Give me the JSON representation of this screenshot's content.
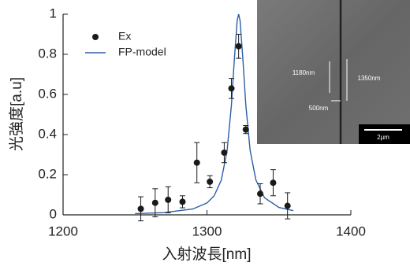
{
  "chart_data": {
    "type": "scatter",
    "x_label": "入射波長[nm]",
    "y_label": "光強度[a.u]",
    "xlim": [
      1200,
      1400
    ],
    "xticks": [
      1200,
      1300,
      1400
    ],
    "ylim": [
      0,
      1
    ],
    "yticks": [
      0,
      0.2,
      0.4,
      0.6,
      0.8,
      1
    ],
    "legend": "upper left",
    "series": [
      {
        "name": "Ex",
        "type": "scatter",
        "color": "#1a1a1a",
        "x": [
          1254,
          1264,
          1273,
          1283,
          1293,
          1302,
          1312,
          1317,
          1322,
          1327,
          1337,
          1346,
          1356
        ],
        "values": [
          0.03,
          0.06,
          0.075,
          0.065,
          0.26,
          0.165,
          0.31,
          0.63,
          0.84,
          0.425,
          0.105,
          0.16,
          0.045
        ],
        "errors": [
          0.06,
          0.07,
          0.065,
          0.03,
          0.1,
          0.03,
          0.05,
          0.05,
          0.06,
          0.02,
          0.05,
          0.065,
          0.065
        ]
      },
      {
        "name": "FP-model",
        "type": "line",
        "color": "#2b5fa8",
        "x": [
          1250,
          1270,
          1290,
          1300,
          1305,
          1310,
          1314,
          1317,
          1319,
          1321,
          1322,
          1323,
          1325,
          1327,
          1330,
          1334,
          1340,
          1350,
          1360
        ],
        "values": [
          0.006,
          0.011,
          0.029,
          0.059,
          0.095,
          0.174,
          0.321,
          0.547,
          0.771,
          0.968,
          1,
          0.968,
          0.771,
          0.547,
          0.321,
          0.174,
          0.085,
          0.037,
          0.021
        ]
      }
    ],
    "inset": {
      "labels": [
        "1180nm",
        "1350nm",
        "500nm",
        "2μm"
      ]
    }
  }
}
